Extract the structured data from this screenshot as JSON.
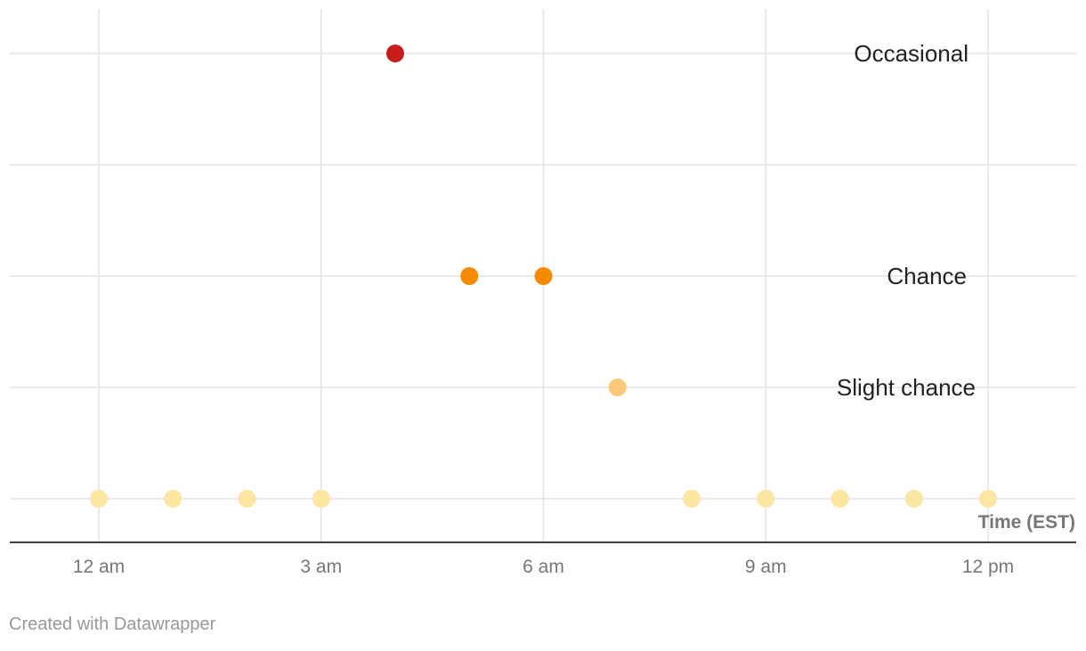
{
  "chart_data": {
    "type": "scatter",
    "x_axis": {
      "title": "Time (EST)",
      "min": 0,
      "max": 13.2,
      "ticks": [
        {
          "value": 0,
          "label": "12 am"
        },
        {
          "value": 3,
          "label": "3 am"
        },
        {
          "value": 6,
          "label": "6 am"
        },
        {
          "value": 9,
          "label": "9 am"
        },
        {
          "value": 12,
          "label": "12 pm"
        }
      ]
    },
    "y_levels": [
      {
        "level": 0,
        "label": ""
      },
      {
        "level": 1,
        "label": "Slight chance"
      },
      {
        "level": 2,
        "label": "Chance"
      },
      {
        "level": 3,
        "label": ""
      },
      {
        "level": 4,
        "label": "Occasional"
      }
    ],
    "points": [
      {
        "x": 0,
        "y": 0,
        "color": "#fde6a1"
      },
      {
        "x": 1,
        "y": 0,
        "color": "#fde6a1"
      },
      {
        "x": 2,
        "y": 0,
        "color": "#fde6a1"
      },
      {
        "x": 3,
        "y": 0,
        "color": "#fde6a1"
      },
      {
        "x": 4,
        "y": 4,
        "color": "#c91d1d"
      },
      {
        "x": 5,
        "y": 2,
        "color": "#f68a00"
      },
      {
        "x": 6,
        "y": 2,
        "color": "#f68a00"
      },
      {
        "x": 7,
        "y": 1,
        "color": "#fdc87a"
      },
      {
        "x": 8,
        "y": 0,
        "color": "#fde6a1"
      },
      {
        "x": 9,
        "y": 0,
        "color": "#fde6a1"
      },
      {
        "x": 10,
        "y": 0,
        "color": "#fde6a1"
      },
      {
        "x": 11,
        "y": 0,
        "color": "#fde6a1"
      },
      {
        "x": 12,
        "y": 0,
        "color": "#fde6a1"
      }
    ],
    "grid": true
  },
  "footer": {
    "credit": "Created with Datawrapper"
  }
}
